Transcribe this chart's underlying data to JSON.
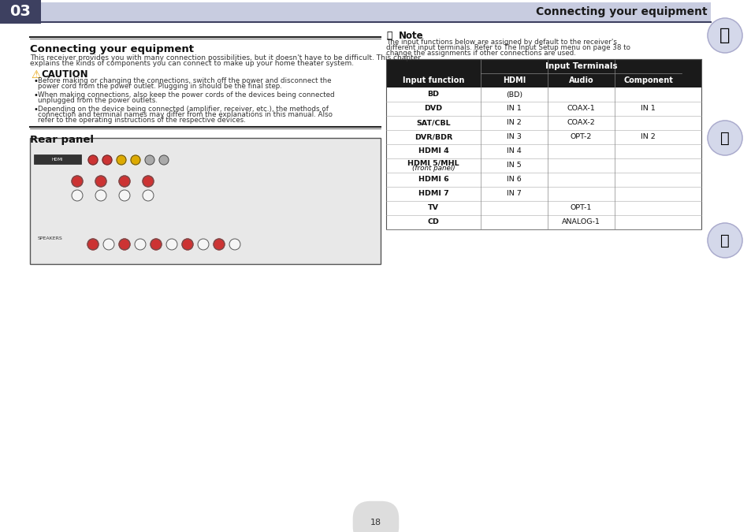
{
  "page_bg": "#ffffff",
  "header_bar_color": "#c8cce0",
  "header_bar_dark": "#3d4060",
  "header_num": "03",
  "header_title": "Connecting your equipment",
  "section1_title": "Connecting your equipment",
  "section1_body": [
    "This receiver provides you with many connection possibilities, but it doesn't have to be difficult. This chapter",
    "explains the kinds of components you can connect to make up your home theater system."
  ],
  "caution_title": "CAUTION",
  "caution_bullets": [
    "Before making or changing the connections, switch off the power and disconnect the power cord from the power outlet. Plugging in should be the final step.",
    "When making connections, also keep the power cords of the devices being connected unplugged from the power outlets.",
    "Depending on the device being connected (amplifier, receiver, etc.), the methods of connection and terminal names may differ from the explanations in this manual. Also refer to the operating instructions of the respective devices."
  ],
  "section2_title": "Rear panel",
  "note_text": "The input functions below are assigned by default to the receiver's different input terminals. Refer to The Input Setup menu on page 38 to change the assignments if other connections are used.",
  "note_link1": "The Input Setup menu",
  "note_link2": "page 38",
  "table_header_top": "Input Terminals",
  "table_col_headers": [
    "Input function",
    "HDMI",
    "Audio",
    "Component"
  ],
  "table_rows": [
    [
      "BD",
      "(BD)",
      "",
      ""
    ],
    [
      "DVD",
      "IN 1",
      "COAX-1",
      "IN 1"
    ],
    [
      "SAT/CBL",
      "IN 2",
      "COAX-2",
      ""
    ],
    [
      "DVR/BDR",
      "IN 3",
      "OPT-2",
      "IN 2"
    ],
    [
      "HDMI 4",
      "IN 4",
      "",
      ""
    ],
    [
      "HDMI 5/MHL\n(front panel)",
      "IN 5",
      "",
      ""
    ],
    [
      "HDMI 6",
      "IN 6",
      "",
      ""
    ],
    [
      "HDMI 7",
      "IN 7",
      "",
      ""
    ],
    [
      "TV",
      "",
      "OPT-1",
      ""
    ],
    [
      "CD",
      "",
      "ANALOG-1",
      ""
    ]
  ],
  "table_header_bg": "#1a1a1a",
  "table_header_fg": "#ffffff",
  "table_subheader_bg": "#1a1a1a",
  "table_subheader_fg": "#ffffff",
  "table_row_bg": "#ffffff",
  "table_alt_bg": "#f5f5f5",
  "table_border": "#888888",
  "page_number": "18"
}
